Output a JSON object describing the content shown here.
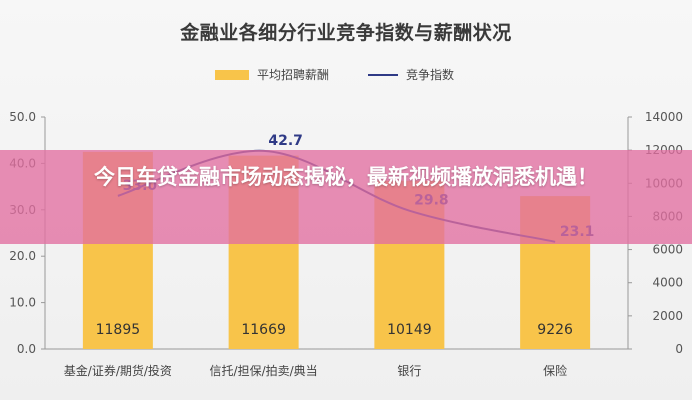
{
  "chart_data": {
    "type": "bar",
    "title": "金融业各细分行业竞争指数与薪酬状况",
    "categories": [
      "基金/证券/期货/投资",
      "信托/担保/拍卖/典当",
      "银行",
      "保险"
    ],
    "series": [
      {
        "name": "平均招聘薪酬",
        "type": "bar",
        "axis": "right",
        "values": [
          11895,
          11669,
          10149,
          9226
        ],
        "color": "#f8c44a"
      },
      {
        "name": "竞争指数",
        "type": "line",
        "axis": "left",
        "values": [
          33.0,
          42.7,
          29.8,
          23.1
        ],
        "color": "#2f3a86"
      }
    ],
    "value_labels": {
      "bar": [
        "11895",
        "11669",
        "10149",
        "9226"
      ],
      "line": [
        "33.0",
        "42.7",
        "29.8",
        "23.1"
      ]
    },
    "left_axis": {
      "ylim": [
        0,
        50
      ],
      "ticks": [
        "0.0",
        "10.0",
        "20.0",
        "30.0",
        "40.0",
        "50.0"
      ]
    },
    "right_axis": {
      "ylim": [
        0,
        14000
      ],
      "ticks": [
        "0",
        "2000",
        "4000",
        "6000",
        "8000",
        "10000",
        "12000",
        "14000"
      ]
    },
    "grid": false,
    "legend_position": "top-center"
  },
  "banner": {
    "text": "今日车贷金融市场动态揭秘，最新视频播放洞悉机遇！"
  }
}
